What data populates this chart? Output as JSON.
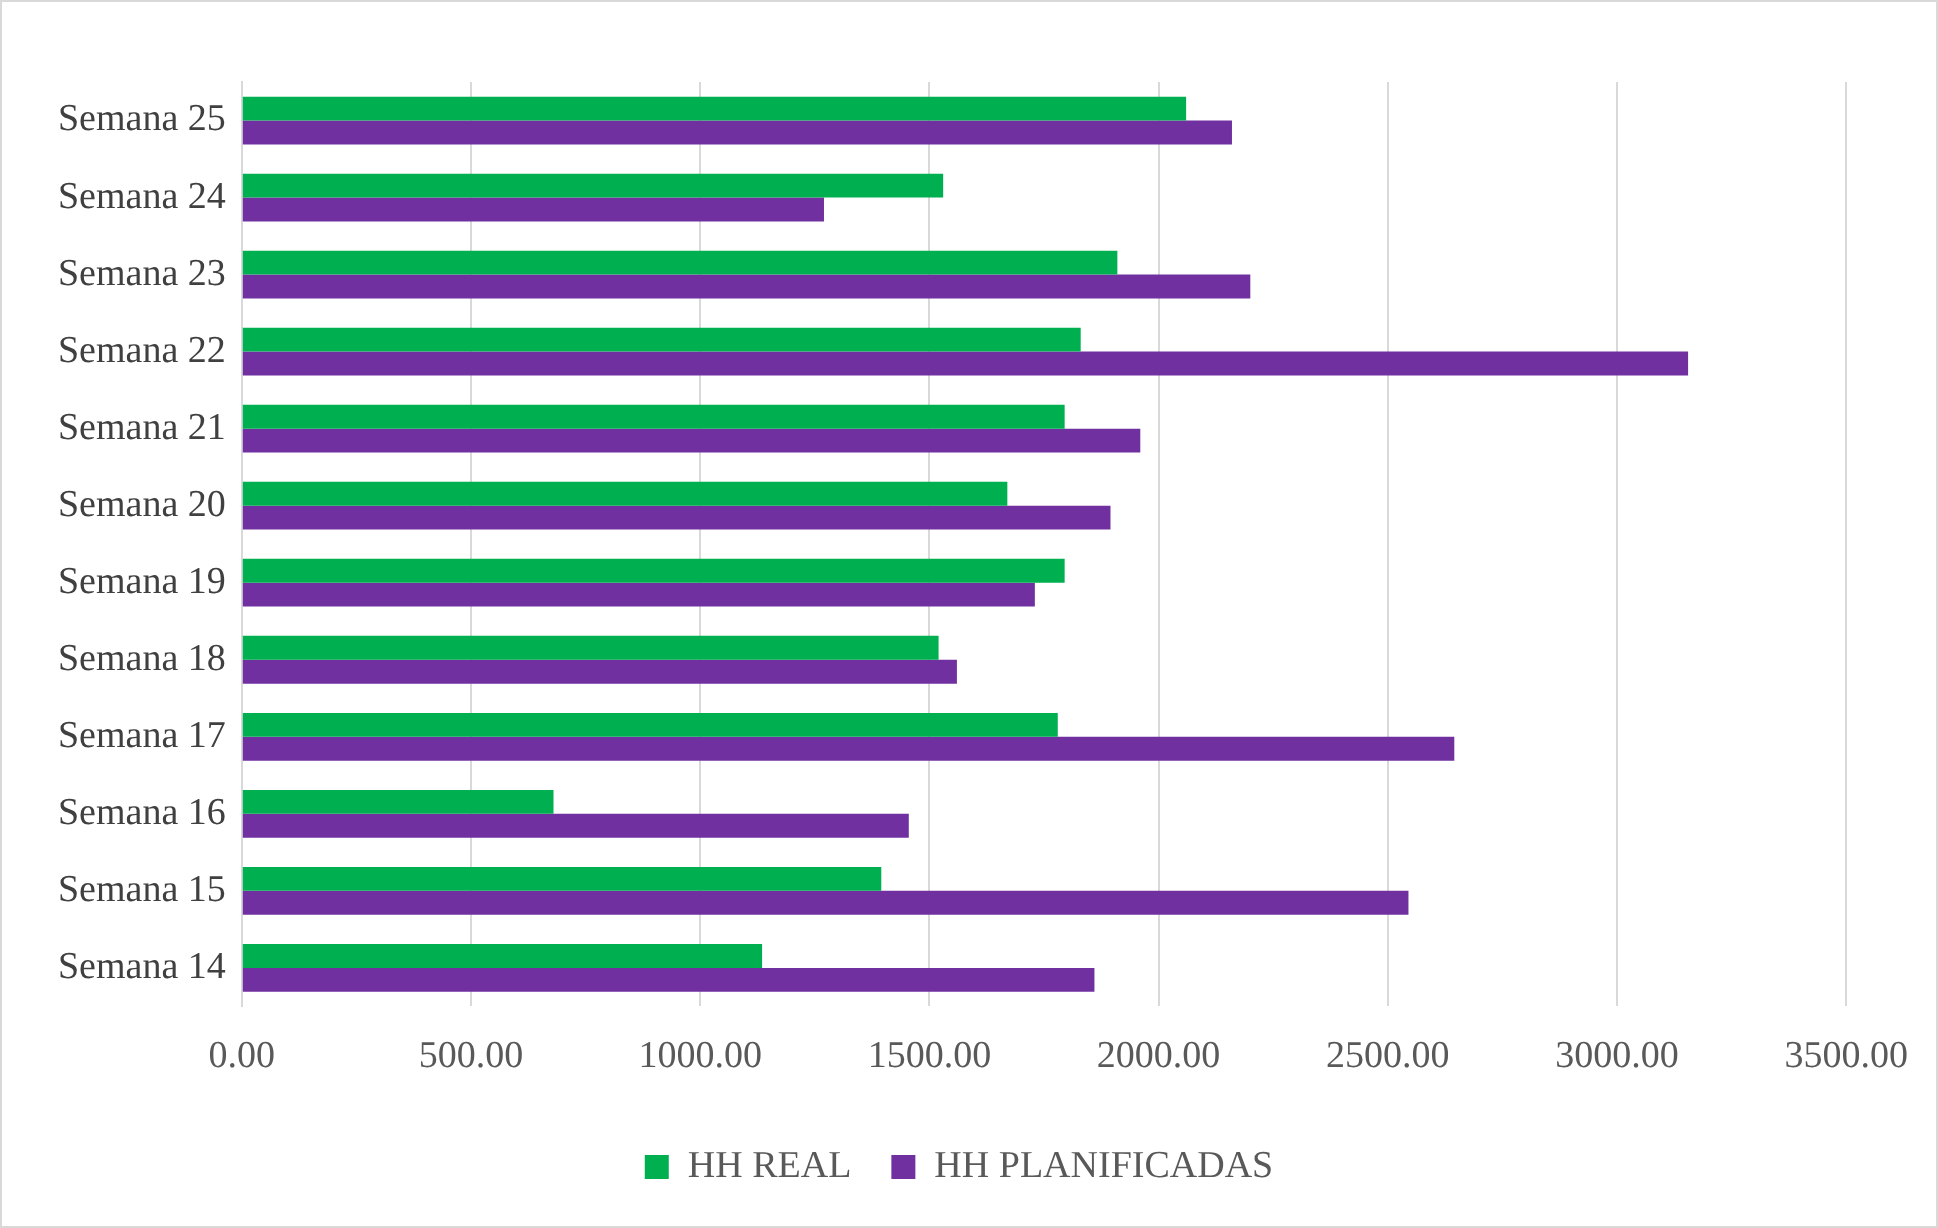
{
  "chart_data": {
    "type": "bar",
    "orientation": "horizontal",
    "categories": [
      "Semana 25",
      "Semana 24",
      "Semana 23",
      "Semana 22",
      "Semana 21",
      "Semana 20",
      "Semana 19",
      "Semana 18",
      "Semana 17",
      "Semana 16",
      "Semana 15",
      "Semana 14"
    ],
    "series": [
      {
        "name": "HH REAL",
        "color": "#00b050",
        "values": [
          2060,
          1530,
          1910,
          1830,
          1795,
          1670,
          1795,
          1520,
          1780,
          680,
          1395,
          1135
        ]
      },
      {
        "name": "HH PLANIFICADAS",
        "color": "#7030a0",
        "values": [
          2160,
          1270,
          2200,
          3155,
          1960,
          1895,
          1730,
          1560,
          2645,
          1455,
          2545,
          1860
        ]
      }
    ],
    "xlim": [
      0,
      3500
    ],
    "xticks": [
      {
        "value": 0,
        "label": "0.00"
      },
      {
        "value": 500,
        "label": "500.00"
      },
      {
        "value": 1000,
        "label": "1000.00"
      },
      {
        "value": 1500,
        "label": "1500.00"
      },
      {
        "value": 2000,
        "label": "2000.00"
      },
      {
        "value": 2500,
        "label": "2500.00"
      },
      {
        "value": 3000,
        "label": "3000.00"
      },
      {
        "value": 3500,
        "label": "3500.00"
      }
    ],
    "grid": "x",
    "legend": "bottom"
  }
}
